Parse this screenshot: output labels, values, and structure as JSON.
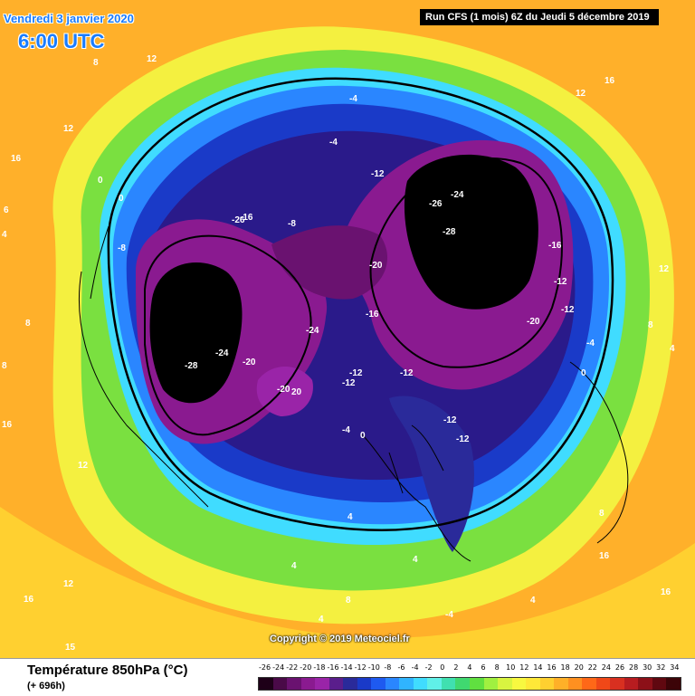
{
  "header": {
    "date": "Vendredi 3 janvier 2020",
    "time": "6:00 UTC",
    "run": "Run CFS (1 mois) 6Z du Jeudi 5 décembre 2019"
  },
  "copyright": "Copyright © 2019 Meteociel.fr",
  "footer": {
    "title": "Température 850hPa (°C)",
    "forecast_hour": "(+ 696h)"
  },
  "legend": {
    "ticks": [
      "-26",
      "-24",
      "-22",
      "-20",
      "-18",
      "-16",
      "-14",
      "-12",
      "-10",
      "-8",
      "-6",
      "-4",
      "-2",
      "0",
      "2",
      "4",
      "6",
      "8",
      "10",
      "12",
      "14",
      "16",
      "18",
      "20",
      "22",
      "24",
      "26",
      "28",
      "30",
      "32",
      "34"
    ],
    "colors": [
      "#1e0018",
      "#4a0a48",
      "#6a1270",
      "#8a1a90",
      "#9a24a8",
      "#5a1e8c",
      "#2a2a9a",
      "#1a3ac8",
      "#1e5af0",
      "#2a86ff",
      "#30b4ff",
      "#40dcff",
      "#60f0e8",
      "#40e0b0",
      "#40d870",
      "#60e040",
      "#a0f040",
      "#d8f440",
      "#f8f840",
      "#ffe838",
      "#ffd030",
      "#ffb028",
      "#ff9020",
      "#ff6818",
      "#f04818",
      "#d83020",
      "#b81c20",
      "#8c1018",
      "#600810",
      "#3c0408"
    ]
  },
  "map_labels": {
    "west_coast": [
      "6",
      "4",
      "8",
      "8",
      "6",
      "16",
      "12",
      "4",
      "12",
      "16",
      "15",
      "16"
    ],
    "north_atlantic_ring": [
      "12",
      "8",
      "12",
      "16",
      "0",
      "0",
      "-8",
      "-4",
      "-4",
      "-12",
      "-8",
      "-16",
      "-26",
      "16"
    ],
    "canadian_cold_pool": [
      "-28",
      "-24",
      "-20",
      "-24",
      "-20",
      "20",
      "-20"
    ],
    "siberian_cold_pool": [
      "-26",
      "-24",
      "-28",
      "-20",
      "-16",
      "-16",
      "-12",
      "-12",
      "-20",
      "-12",
      "-4"
    ],
    "europe": [
      "-12",
      "-12",
      "-4",
      "0",
      "0",
      "-12",
      "-12",
      "0",
      "-4"
    ],
    "southern": [
      "4",
      "4",
      "4",
      "8",
      "4",
      "4",
      "8",
      "4",
      "-4",
      "4",
      "8",
      "12",
      "12",
      "8",
      "4",
      "8",
      "16",
      "16",
      "12",
      "12",
      "16",
      "4",
      "4"
    ]
  }
}
